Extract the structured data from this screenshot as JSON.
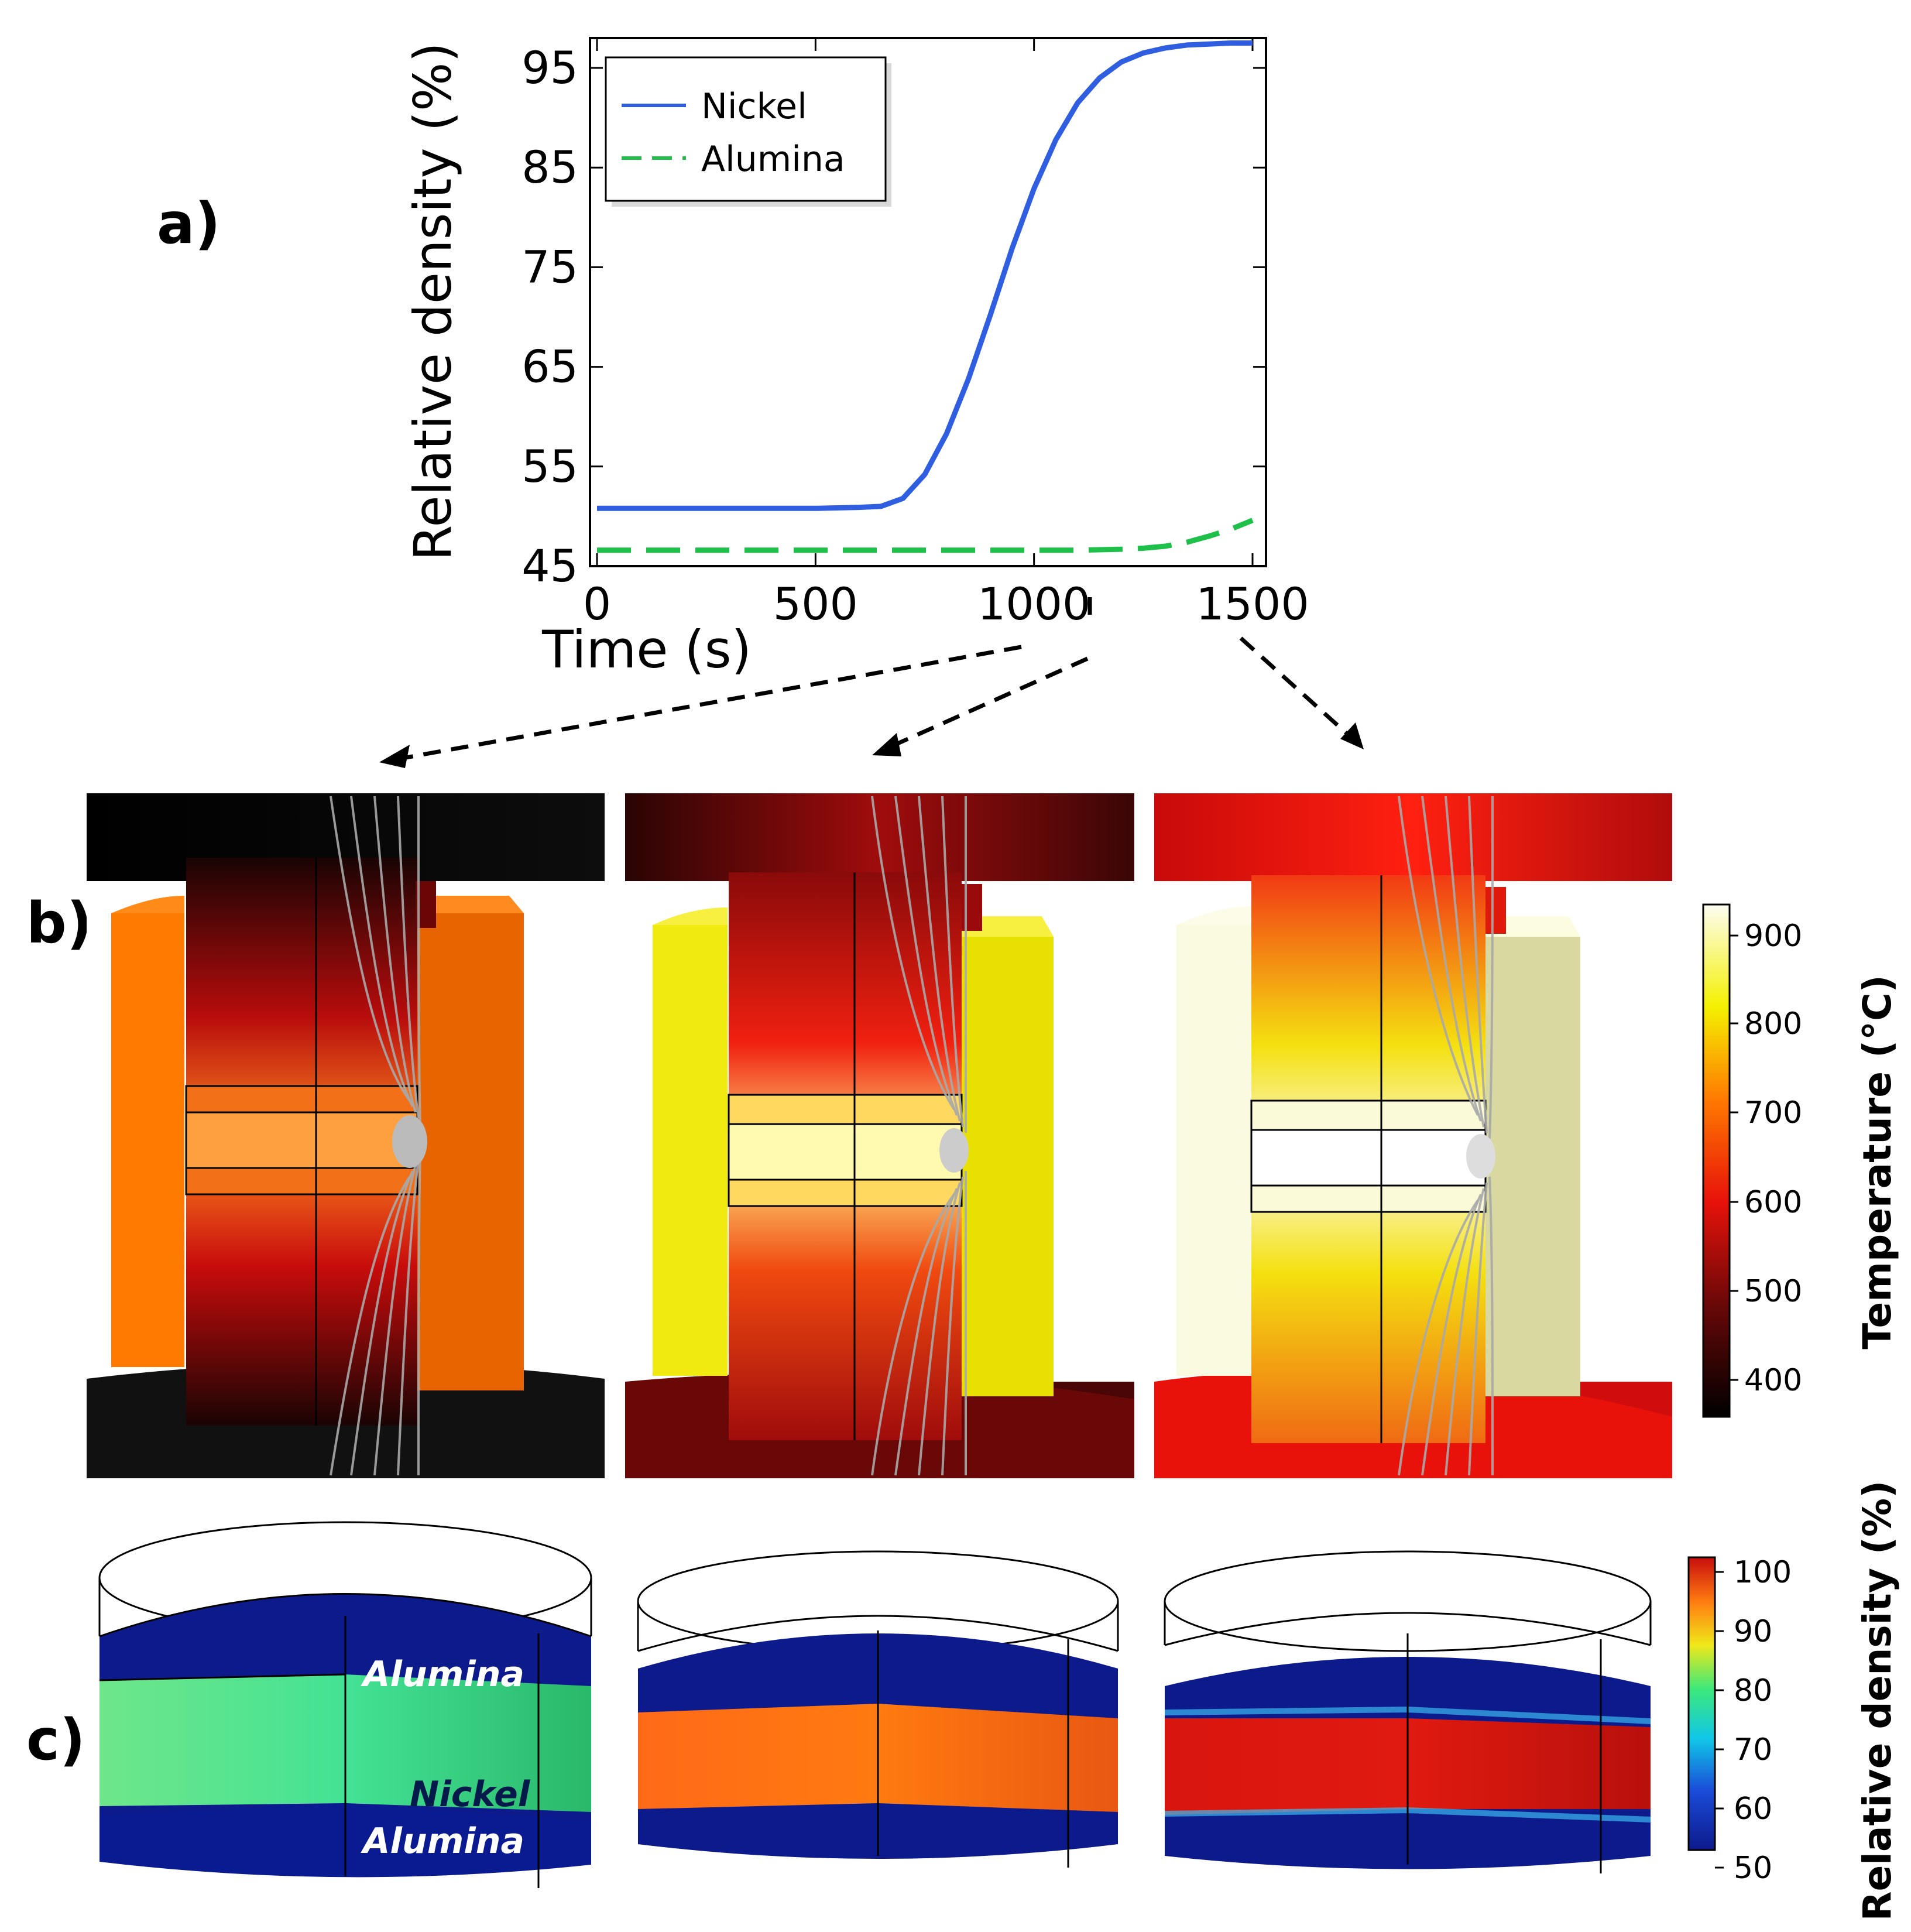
{
  "panel_labels": {
    "a": "a)",
    "b": "b)",
    "c": "c)"
  },
  "chart_data": {
    "type": "line",
    "title": "",
    "xlabel": "Time (s)",
    "ylabel": "Relative density (%)",
    "xlim": [
      0,
      1500
    ],
    "ylim": [
      45,
      98
    ],
    "xticks": [
      "0",
      "500",
      "1000",
      "1500"
    ],
    "yticks": [
      "45",
      "55",
      "65",
      "75",
      "85",
      "95"
    ],
    "legend_position": "top-left",
    "series": [
      {
        "name": "Nickel",
        "color": "#2f5fe0",
        "style": "solid",
        "x": [
          0,
          100,
          200,
          300,
          400,
          500,
          600,
          650,
          700,
          750,
          800,
          850,
          900,
          950,
          1000,
          1050,
          1100,
          1150,
          1200,
          1250,
          1300,
          1350,
          1400,
          1450,
          1500
        ],
        "y": [
          50.8,
          50.8,
          50.8,
          50.8,
          50.8,
          50.8,
          50.9,
          51.0,
          51.8,
          54.2,
          58.3,
          63.8,
          70.2,
          76.9,
          82.9,
          87.8,
          91.5,
          94.0,
          95.6,
          96.5,
          97.0,
          97.3,
          97.4,
          97.5,
          97.5
        ]
      },
      {
        "name": "Alumina",
        "color": "#1fc04a",
        "style": "dashed",
        "x": [
          0,
          200,
          400,
          600,
          800,
          1000,
          1100,
          1200,
          1250,
          1300,
          1350,
          1400,
          1450,
          1500
        ],
        "y": [
          46.6,
          46.6,
          46.6,
          46.6,
          46.6,
          46.6,
          46.6,
          46.7,
          46.8,
          47.0,
          47.4,
          48.0,
          48.7,
          49.6
        ]
      }
    ]
  },
  "temperature_colorbar": {
    "title": "Temperature (°C)",
    "ticks": [
      "900",
      "800",
      "700",
      "600",
      "500",
      "400"
    ]
  },
  "density_colorbar": {
    "title": "Relative density (%)",
    "ticks": [
      "100",
      "90",
      "80",
      "70",
      "60",
      "50"
    ]
  },
  "layer_labels": {
    "top": "Alumina",
    "middle": "Nickel",
    "bottom": "Alumina"
  },
  "colors": {
    "cold": "#0a0a0a",
    "mid": "#e8120a",
    "hot": "#f4f000",
    "max": "#fbfbe8",
    "low_density": "#0d1a8c",
    "high_density": "#d41a10"
  }
}
